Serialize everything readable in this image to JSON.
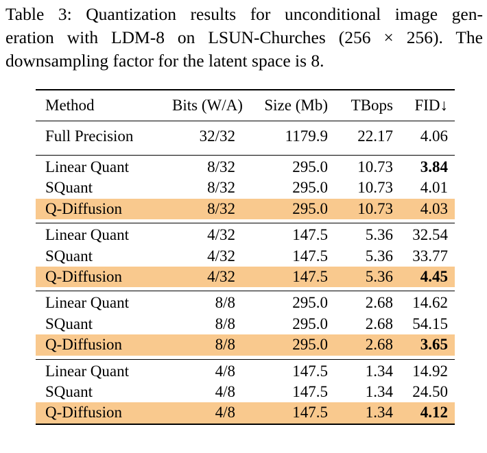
{
  "caption": {
    "line1": "Table 3: Quantization results for unconditional image gen-",
    "line2": "eration with LDM-8 on LSUN-Churches (256 × 256). The",
    "line3": "downsampling factor for the latent space is 8."
  },
  "headers": [
    "Method",
    "Bits (W/A)",
    "Size (Mb)",
    "TBops",
    "FID↓"
  ],
  "full_precision": {
    "method": "Full Precision",
    "bits": "32/32",
    "size": "1179.9",
    "tbops": "22.17",
    "fid": "4.06"
  },
  "groups": [
    {
      "rows": [
        {
          "method": "Linear Quant",
          "bits": "8/32",
          "size": "295.0",
          "tbops": "10.73",
          "fid": "3.84",
          "fid_bold": true,
          "highlight": false
        },
        {
          "method": "SQuant",
          "bits": "8/32",
          "size": "295.0",
          "tbops": "10.73",
          "fid": "4.01",
          "fid_bold": false,
          "highlight": false
        },
        {
          "method": "Q-Diffusion",
          "bits": "8/32",
          "size": "295.0",
          "tbops": "10.73",
          "fid": "4.03",
          "fid_bold": false,
          "highlight": true
        }
      ]
    },
    {
      "rows": [
        {
          "method": "Linear Quant",
          "bits": "4/32",
          "size": "147.5",
          "tbops": "5.36",
          "fid": "32.54",
          "fid_bold": false,
          "highlight": false
        },
        {
          "method": "SQuant",
          "bits": "4/32",
          "size": "147.5",
          "tbops": "5.36",
          "fid": "33.77",
          "fid_bold": false,
          "highlight": false
        },
        {
          "method": "Q-Diffusion",
          "bits": "4/32",
          "size": "147.5",
          "tbops": "5.36",
          "fid": "4.45",
          "fid_bold": true,
          "highlight": true
        }
      ]
    },
    {
      "rows": [
        {
          "method": "Linear Quant",
          "bits": "8/8",
          "size": "295.0",
          "tbops": "2.68",
          "fid": "14.62",
          "fid_bold": false,
          "highlight": false
        },
        {
          "method": "SQuant",
          "bits": "8/8",
          "size": "295.0",
          "tbops": "2.68",
          "fid": "54.15",
          "fid_bold": false,
          "highlight": false
        },
        {
          "method": "Q-Diffusion",
          "bits": "8/8",
          "size": "295.0",
          "tbops": "2.68",
          "fid": "3.65",
          "fid_bold": true,
          "highlight": true
        }
      ]
    },
    {
      "rows": [
        {
          "method": "Linear Quant",
          "bits": "4/8",
          "size": "147.5",
          "tbops": "1.34",
          "fid": "14.92",
          "fid_bold": false,
          "highlight": false
        },
        {
          "method": "SQuant",
          "bits": "4/8",
          "size": "147.5",
          "tbops": "1.34",
          "fid": "24.50",
          "fid_bold": false,
          "highlight": false
        },
        {
          "method": "Q-Diffusion",
          "bits": "4/8",
          "size": "147.5",
          "tbops": "1.34",
          "fid": "4.12",
          "fid_bold": true,
          "highlight": true
        }
      ]
    }
  ],
  "colors": {
    "highlight": "#f9c98e",
    "text": "#000000",
    "background": "#ffffff"
  }
}
